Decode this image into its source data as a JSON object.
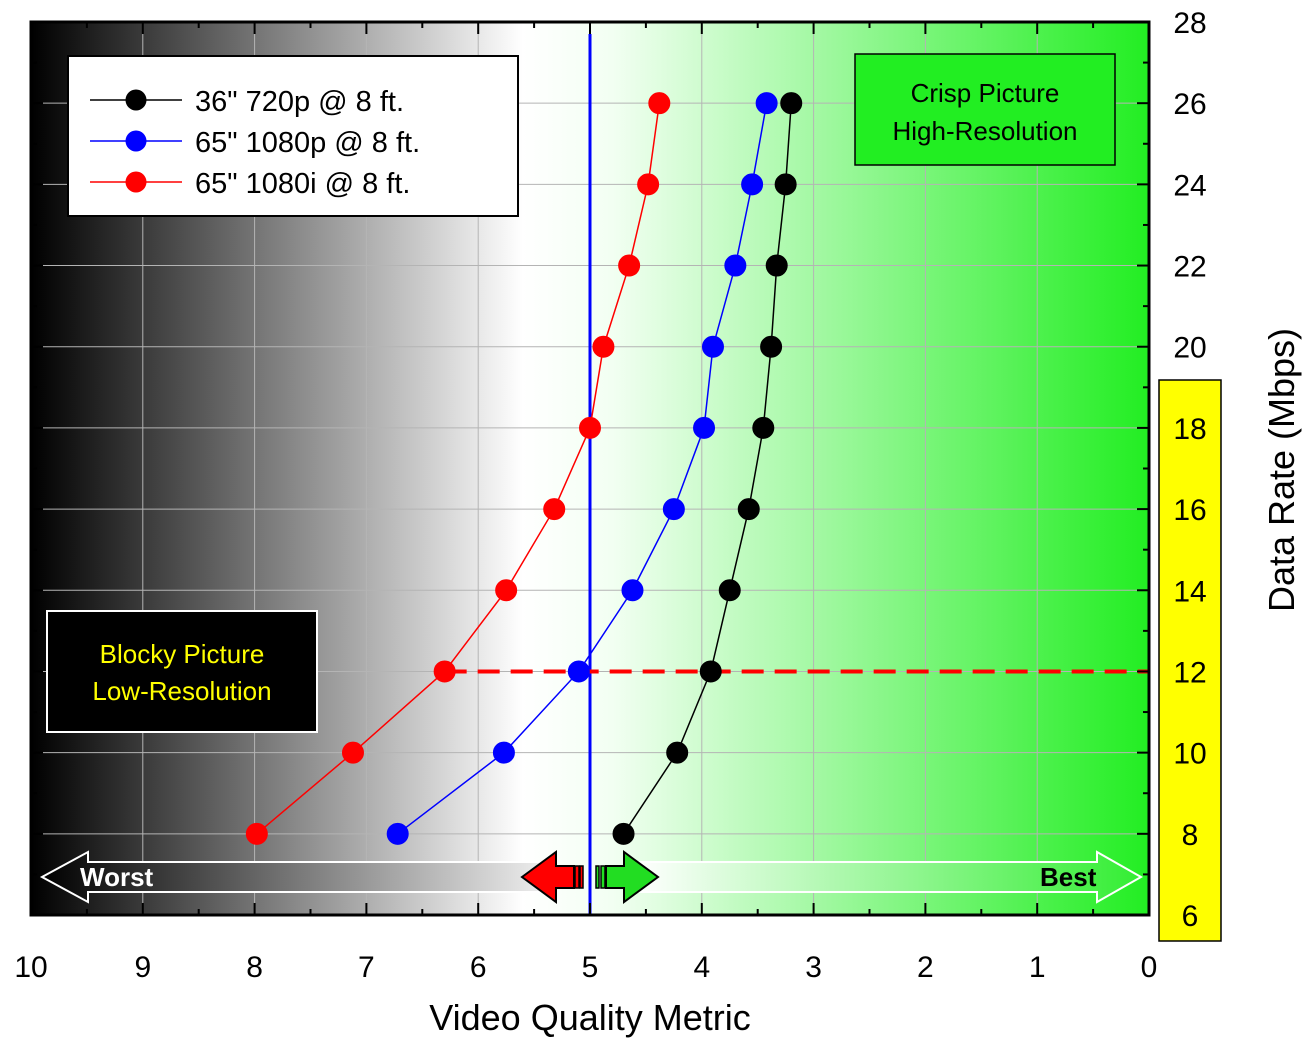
{
  "chart_data": {
    "type": "line",
    "title": "",
    "xlabel": "Video Quality Metric",
    "ylabel": "Data Rate (Mbps)",
    "xlim": [
      10,
      0
    ],
    "ylim": [
      6,
      28
    ],
    "x_reversed": true,
    "y_axis_side": "right",
    "x_ticks": [
      "10",
      "9",
      "8",
      "7",
      "6",
      "5",
      "4",
      "3",
      "2",
      "1",
      "0"
    ],
    "y_ticks": [
      "6",
      "8",
      "10",
      "12",
      "14",
      "16",
      "18",
      "20",
      "22",
      "24",
      "26",
      "28"
    ],
    "grid": true,
    "legend_position": "top-left",
    "series": [
      {
        "name": "36\" 720p @ 8 ft.",
        "color": "#000000",
        "points": [
          {
            "x": 4.7,
            "y": 8
          },
          {
            "x": 4.22,
            "y": 10
          },
          {
            "x": 3.92,
            "y": 12
          },
          {
            "x": 3.75,
            "y": 14
          },
          {
            "x": 3.58,
            "y": 16
          },
          {
            "x": 3.45,
            "y": 18
          },
          {
            "x": 3.38,
            "y": 20
          },
          {
            "x": 3.33,
            "y": 22
          },
          {
            "x": 3.25,
            "y": 24
          },
          {
            "x": 3.2,
            "y": 26
          }
        ]
      },
      {
        "name": "65\" 1080p @ 8 ft.",
        "color": "#0000ff",
        "points": [
          {
            "x": 6.72,
            "y": 8
          },
          {
            "x": 5.77,
            "y": 10
          },
          {
            "x": 5.1,
            "y": 12
          },
          {
            "x": 4.62,
            "y": 14
          },
          {
            "x": 4.25,
            "y": 16
          },
          {
            "x": 3.98,
            "y": 18
          },
          {
            "x": 3.9,
            "y": 20
          },
          {
            "x": 3.7,
            "y": 22
          },
          {
            "x": 3.55,
            "y": 24
          },
          {
            "x": 3.42,
            "y": 26
          }
        ]
      },
      {
        "name": "65\" 1080i @ 8 ft.",
        "color": "#ff0000",
        "points": [
          {
            "x": 7.98,
            "y": 8
          },
          {
            "x": 7.12,
            "y": 10
          },
          {
            "x": 6.3,
            "y": 12
          },
          {
            "x": 5.75,
            "y": 14
          },
          {
            "x": 5.32,
            "y": 16
          },
          {
            "x": 5.0,
            "y": 18
          },
          {
            "x": 4.88,
            "y": 20
          },
          {
            "x": 4.65,
            "y": 22
          },
          {
            "x": 4.48,
            "y": 24
          },
          {
            "x": 4.38,
            "y": 26
          }
        ]
      }
    ],
    "reference_lines": [
      {
        "kind": "vertical",
        "x": 5,
        "color": "#0000ff",
        "style": "solid"
      },
      {
        "kind": "horizontal",
        "y": 12,
        "color": "#ff0000",
        "style": "dashed",
        "x_from": 6.3,
        "x_to": 0
      }
    ],
    "annotations": {
      "crisp_box": {
        "line1": "Crisp Picture",
        "line2": "High-Resolution",
        "background": "#22ee22"
      },
      "blocky_box": {
        "line1": "Blocky Picture",
        "line2": "Low-Resolution",
        "background": "#000000",
        "text_color": "#ffff00"
      },
      "worst_label": "Worst",
      "best_label": "Best",
      "y_highlight": {
        "from": 6,
        "to": 19,
        "color": "#ffff00"
      }
    }
  }
}
